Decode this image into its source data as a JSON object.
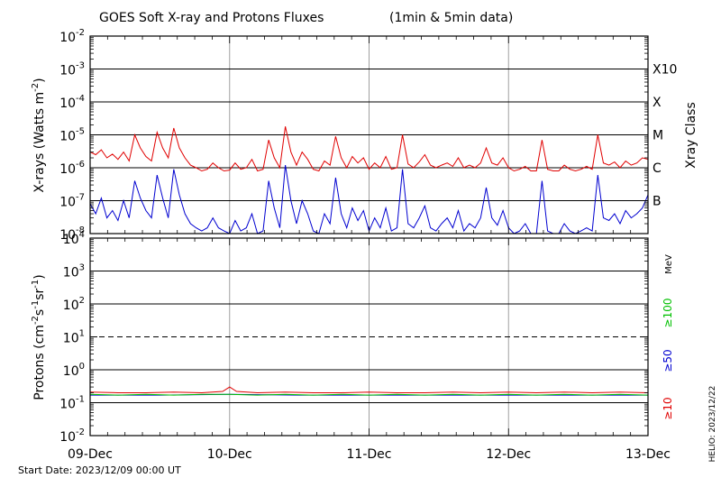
{
  "chart_data": {
    "type": "line",
    "title": "GOES Soft X-ray and Protons Fluxes",
    "subtitle": "(1min & 5min data)",
    "x_ticks": [
      "09-Dec",
      "10-Dec",
      "11-Dec",
      "12-Dec",
      "13-Dec"
    ],
    "x_range": [
      "2023-12-09T00:00",
      "2023-12-13T00:00"
    ],
    "start_date_label": "Start Date: 2023/12/09 00:00 UT",
    "stamp": "HELIO: 2023/12/22",
    "xray_panel": {
      "ylabel_main": "X-rays (Watts m",
      "ylabel_exp": "-2",
      "ylabel_end": ")",
      "y_scale": "log",
      "ylim": [
        1e-08,
        0.01
      ],
      "y_tick_exponents": [
        "-8",
        "-7",
        "-6",
        "-5",
        "-4",
        "-3",
        "-2"
      ],
      "grid_lines": [
        1e-07,
        1e-06,
        1e-05,
        0.0001,
        0.001
      ],
      "class_axis_label": "Xray Class",
      "classes": [
        {
          "label": "B",
          "value": 1e-07
        },
        {
          "label": "C",
          "value": 1e-06
        },
        {
          "label": "M",
          "value": 1e-05
        },
        {
          "label": "X",
          "value": 0.0001
        },
        {
          "label": "X10",
          "value": 0.001
        }
      ],
      "series": [
        {
          "color": "#e00000",
          "x": [
            0,
            0.04,
            0.08,
            0.12,
            0.16,
            0.2,
            0.24,
            0.28,
            0.32,
            0.36,
            0.4,
            0.44,
            0.48,
            0.52,
            0.56,
            0.6,
            0.64,
            0.68,
            0.72,
            0.76,
            0.8,
            0.84,
            0.88,
            0.92,
            0.96,
            1.0,
            1.04,
            1.08,
            1.12,
            1.16,
            1.2,
            1.24,
            1.28,
            1.32,
            1.36,
            1.4,
            1.44,
            1.48,
            1.52,
            1.56,
            1.6,
            1.64,
            1.68,
            1.72,
            1.76,
            1.8,
            1.84,
            1.88,
            1.92,
            1.96,
            2.0,
            2.04,
            2.08,
            2.12,
            2.16,
            2.2,
            2.24,
            2.28,
            2.32,
            2.36,
            2.4,
            2.44,
            2.48,
            2.52,
            2.56,
            2.6,
            2.64,
            2.68,
            2.72,
            2.76,
            2.8,
            2.84,
            2.88,
            2.92,
            2.96,
            3.0,
            3.04,
            3.08,
            3.12,
            3.16,
            3.2,
            3.24,
            3.28,
            3.32,
            3.36,
            3.4,
            3.44,
            3.48,
            3.52,
            3.56,
            3.6,
            3.64,
            3.68,
            3.72,
            3.76,
            3.8,
            3.84,
            3.88,
            3.92,
            3.96,
            4.0
          ],
          "values": [
            3e-06,
            2.5e-06,
            3.5e-06,
            2e-06,
            2.6e-06,
            1.8e-06,
            3e-06,
            1.6e-06,
            1e-05,
            4e-06,
            2.2e-06,
            1.6e-06,
            1.2e-05,
            4e-06,
            2e-06,
            1.6e-05,
            4e-06,
            2e-06,
            1.2e-06,
            1e-06,
            8e-07,
            9e-07,
            1.4e-06,
            1e-06,
            8e-07,
            8.5e-07,
            1.4e-06,
            9e-07,
            1e-06,
            1.8e-06,
            8e-07,
            9e-07,
            7e-06,
            2e-06,
            1e-06,
            1.8e-05,
            3e-06,
            1.2e-06,
            3e-06,
            1.8e-06,
            9e-07,
            8e-07,
            1.6e-06,
            1.2e-06,
            9e-06,
            2e-06,
            1e-06,
            2.2e-06,
            1.4e-06,
            2e-06,
            9e-07,
            1.4e-06,
            1e-06,
            2.2e-06,
            9e-07,
            1e-06,
            1e-05,
            1.3e-06,
            1e-06,
            1.5e-06,
            2.5e-06,
            1.2e-06,
            1e-06,
            1.2e-06,
            1.4e-06,
            1.1e-06,
            2e-06,
            1e-06,
            1.2e-06,
            1e-06,
            1.4e-06,
            4e-06,
            1.4e-06,
            1.2e-06,
            2e-06,
            1e-06,
            8e-07,
            9e-07,
            1.1e-06,
            8e-07,
            8e-07,
            7e-06,
            9e-07,
            8e-07,
            8e-07,
            1.2e-06,
            9e-07,
            8e-07,
            9e-07,
            1.1e-06,
            9e-07,
            1e-05,
            1.4e-06,
            1.2e-06,
            1.5e-06,
            1e-06,
            1.6e-06,
            1.2e-06,
            1.4e-06,
            2e-06,
            1.8e-06
          ]
        },
        {
          "color": "#0000d0",
          "x": [
            0,
            0.04,
            0.08,
            0.12,
            0.16,
            0.2,
            0.24,
            0.28,
            0.32,
            0.36,
            0.4,
            0.44,
            0.48,
            0.52,
            0.56,
            0.6,
            0.64,
            0.68,
            0.72,
            0.76,
            0.8,
            0.84,
            0.88,
            0.92,
            0.96,
            1.0,
            1.04,
            1.08,
            1.12,
            1.16,
            1.2,
            1.24,
            1.28,
            1.32,
            1.36,
            1.4,
            1.44,
            1.48,
            1.52,
            1.56,
            1.6,
            1.64,
            1.68,
            1.72,
            1.76,
            1.8,
            1.84,
            1.88,
            1.92,
            1.96,
            2.0,
            2.04,
            2.08,
            2.12,
            2.16,
            2.2,
            2.24,
            2.28,
            2.32,
            2.36,
            2.4,
            2.44,
            2.48,
            2.52,
            2.56,
            2.6,
            2.64,
            2.68,
            2.72,
            2.76,
            2.8,
            2.84,
            2.88,
            2.92,
            2.96,
            3.0,
            3.04,
            3.08,
            3.12,
            3.16,
            3.2,
            3.24,
            3.28,
            3.32,
            3.36,
            3.4,
            3.44,
            3.48,
            3.52,
            3.56,
            3.6,
            3.64,
            3.68,
            3.72,
            3.76,
            3.8,
            3.84,
            3.88,
            3.92,
            3.96,
            4.0
          ],
          "values": [
            8e-08,
            4e-08,
            1.2e-07,
            3e-08,
            5e-08,
            2.5e-08,
            1e-07,
            3e-08,
            4e-07,
            1.2e-07,
            5e-08,
            3e-08,
            6e-07,
            1.2e-07,
            3e-08,
            9e-07,
            1.5e-07,
            4e-08,
            2e-08,
            1.5e-08,
            1.2e-08,
            1.5e-08,
            3e-08,
            1.5e-08,
            1.2e-08,
            1e-08,
            2.5e-08,
            1.2e-08,
            1.5e-08,
            4e-08,
            1e-08,
            1.2e-08,
            4e-07,
            6e-08,
            1.5e-08,
            1.2e-06,
            1e-07,
            2e-08,
            1e-07,
            4e-08,
            1.2e-08,
            1e-08,
            4e-08,
            2e-08,
            5e-07,
            4e-08,
            1.5e-08,
            6e-08,
            2.5e-08,
            5e-08,
            1.2e-08,
            3e-08,
            1.5e-08,
            6e-08,
            1.2e-08,
            1.5e-08,
            9e-07,
            2e-08,
            1.5e-08,
            3e-08,
            7e-08,
            1.5e-08,
            1.2e-08,
            2e-08,
            3e-08,
            1.5e-08,
            5e-08,
            1.2e-08,
            2e-08,
            1.5e-08,
            3e-08,
            2.5e-07,
            3e-08,
            1.8e-08,
            5e-08,
            1.5e-08,
            1e-08,
            1.2e-08,
            2e-08,
            1e-08,
            1e-08,
            4e-07,
            1.2e-08,
            1e-08,
            1e-08,
            2e-08,
            1.2e-08,
            1e-08,
            1.2e-08,
            1.5e-08,
            1.2e-08,
            6e-07,
            3e-08,
            2.5e-08,
            4e-08,
            2e-08,
            5e-08,
            3e-08,
            4e-08,
            6e-08,
            1.5e-07
          ]
        }
      ]
    },
    "proton_panel": {
      "ylabel_main": "Protons (cm",
      "ylabel_exp1": "-2",
      "ylabel_mid": "s",
      "ylabel_exp2": "-1",
      "ylabel_mid2": "sr",
      "ylabel_exp3": "-1",
      "ylabel_end": ")",
      "y_scale": "log",
      "ylim": [
        0.01,
        10000
      ],
      "y_tick_exponents": [
        "-2",
        "-1",
        "0",
        "1",
        "2",
        "3",
        "4"
      ],
      "grid_lines": [
        0.1,
        1,
        100,
        1000
      ],
      "dashed_lines": [
        10
      ],
      "unit_label": "MeV",
      "legend": [
        {
          "label": "≥100",
          "color": "#00c000"
        },
        {
          "label": "≥50",
          "color": "#0000d0"
        },
        {
          "label": "≥10",
          "color": "#e00000"
        }
      ],
      "series": [
        {
          "color": "#e00000",
          "x": [
            0,
            0.2,
            0.4,
            0.6,
            0.8,
            0.95,
            1.0,
            1.05,
            1.2,
            1.4,
            1.6,
            1.8,
            2.0,
            2.2,
            2.4,
            2.6,
            2.8,
            3.0,
            3.2,
            3.4,
            3.6,
            3.8,
            4.0
          ],
          "values": [
            0.21,
            0.2,
            0.2,
            0.21,
            0.2,
            0.22,
            0.3,
            0.22,
            0.2,
            0.21,
            0.2,
            0.2,
            0.21,
            0.2,
            0.2,
            0.21,
            0.2,
            0.21,
            0.2,
            0.21,
            0.2,
            0.21,
            0.2
          ]
        },
        {
          "color": "#0000d0",
          "x": [
            0,
            0.5,
            1.0,
            1.5,
            2.0,
            2.5,
            3.0,
            3.5,
            4.0
          ],
          "values": [
            0.17,
            0.17,
            0.18,
            0.17,
            0.17,
            0.17,
            0.17,
            0.17,
            0.17
          ]
        },
        {
          "color": "#00c000",
          "x": [
            0,
            0.2,
            0.4,
            0.6,
            0.8,
            1.0,
            1.2,
            1.4,
            1.6,
            1.8,
            2.0,
            2.2,
            2.4,
            2.6,
            2.8,
            3.0,
            3.2,
            3.4,
            3.6,
            3.8,
            4.0
          ],
          "values": [
            0.18,
            0.17,
            0.18,
            0.17,
            0.18,
            0.18,
            0.17,
            0.18,
            0.17,
            0.18,
            0.17,
            0.18,
            0.17,
            0.18,
            0.17,
            0.18,
            0.17,
            0.18,
            0.17,
            0.18,
            0.17
          ]
        }
      ]
    }
  }
}
